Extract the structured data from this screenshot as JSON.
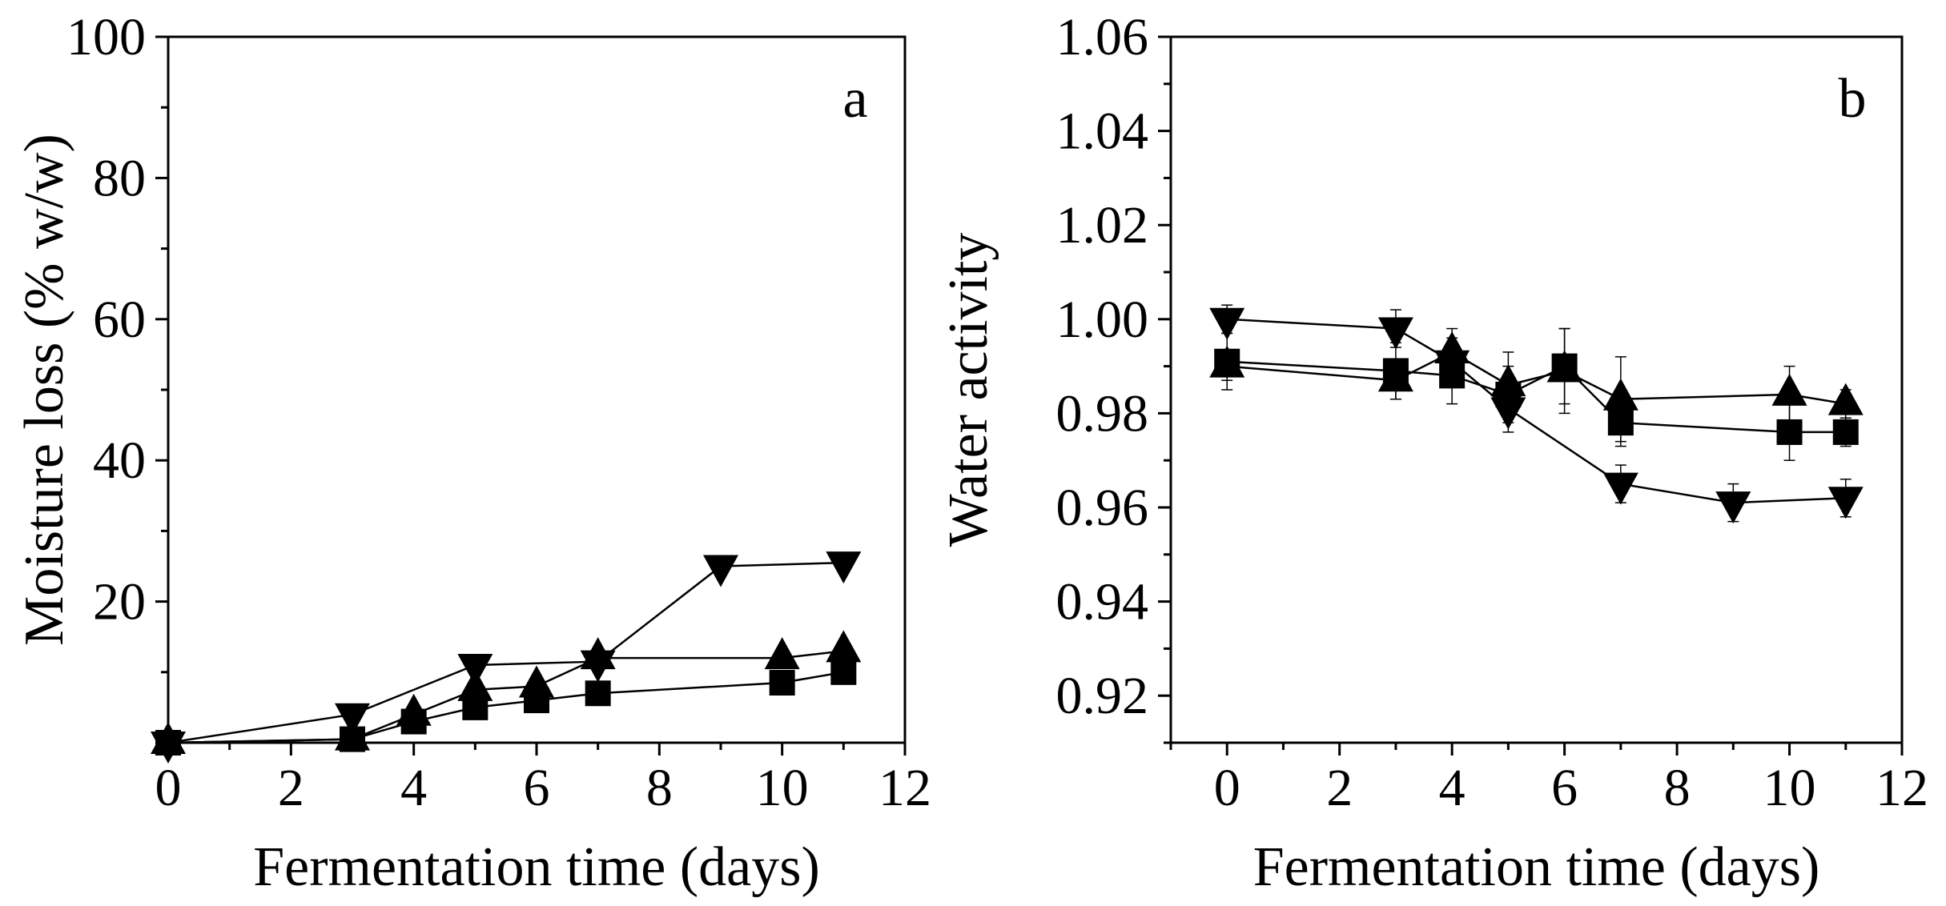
{
  "chart_data": [
    {
      "type": "line",
      "panel": "a",
      "xlabel": "Fermentation time (days)",
      "ylabel": "Moisture loss (% w/w)",
      "xlim": [
        0,
        12
      ],
      "ylim": [
        0,
        100
      ],
      "xticks": [
        0,
        2,
        4,
        6,
        8,
        10,
        12
      ],
      "yticks": [
        20,
        40,
        60,
        80,
        100
      ],
      "xtick_labels": [
        "0",
        "2",
        "4",
        "6",
        "8",
        "10",
        "12"
      ],
      "ytick_labels": [
        "20",
        "40",
        "60",
        "80",
        "100"
      ],
      "series": [
        {
          "name": "square",
          "marker": "square",
          "x": [
            0,
            3,
            4,
            5,
            6,
            7,
            10,
            11
          ],
          "y": [
            0,
            0.5,
            3,
            5,
            6,
            7,
            8.5,
            10
          ]
        },
        {
          "name": "triangle-up",
          "marker": "triangle-up",
          "x": [
            0,
            3,
            4,
            5,
            6,
            7,
            10,
            11
          ],
          "y": [
            0,
            0.5,
            4,
            7.5,
            8,
            12,
            12,
            13
          ]
        },
        {
          "name": "triangle-down",
          "marker": "triangle-down",
          "x": [
            0,
            3,
            5,
            7,
            9,
            11
          ],
          "y": [
            0,
            4,
            11,
            11.5,
            25,
            25.5
          ]
        }
      ]
    },
    {
      "type": "line",
      "panel": "b",
      "xlabel": "Fermentation time (days)",
      "ylabel": "Water activity",
      "xlim": [
        -1,
        12
      ],
      "ylim": [
        0.91,
        1.06
      ],
      "xticks": [
        0,
        2,
        4,
        6,
        8,
        10,
        12
      ],
      "yticks": [
        0.92,
        0.94,
        0.96,
        0.98,
        1.0,
        1.02,
        1.04,
        1.06
      ],
      "xtick_labels": [
        "0",
        "2",
        "4",
        "6",
        "8",
        "10",
        "12"
      ],
      "ytick_labels": [
        "0.92",
        "0.94",
        "0.96",
        "0.98",
        "1.00",
        "1.02",
        "1.04",
        "1.06"
      ],
      "series": [
        {
          "name": "square",
          "marker": "square",
          "x": [
            0,
            3,
            4,
            5,
            6,
            7,
            10,
            11
          ],
          "y": [
            0.991,
            0.989,
            0.988,
            0.984,
            0.99,
            0.978,
            0.976,
            0.976
          ],
          "err": [
            0.006,
            0.006,
            0.006,
            0.006,
            0.008,
            0.005,
            0.006,
            0.003
          ]
        },
        {
          "name": "triangle-up",
          "marker": "triangle-up",
          "x": [
            0,
            3,
            4,
            5,
            6,
            7,
            10,
            11
          ],
          "y": [
            0.99,
            0.987,
            0.993,
            0.986,
            0.989,
            0.983,
            0.984,
            0.982
          ],
          "err": [
            0.003,
            0.004,
            0.005,
            0.007,
            0.009,
            0.009,
            0.006,
            0.003
          ]
        },
        {
          "name": "triangle-down",
          "marker": "triangle-down",
          "x": [
            0,
            3,
            4,
            5,
            7,
            9,
            11
          ],
          "y": [
            1.0,
            0.998,
            0.991,
            0.981,
            0.965,
            0.961,
            0.962
          ],
          "err": [
            0.003,
            0.004,
            0.005,
            0.005,
            0.004,
            0.004,
            0.004
          ]
        }
      ]
    }
  ]
}
